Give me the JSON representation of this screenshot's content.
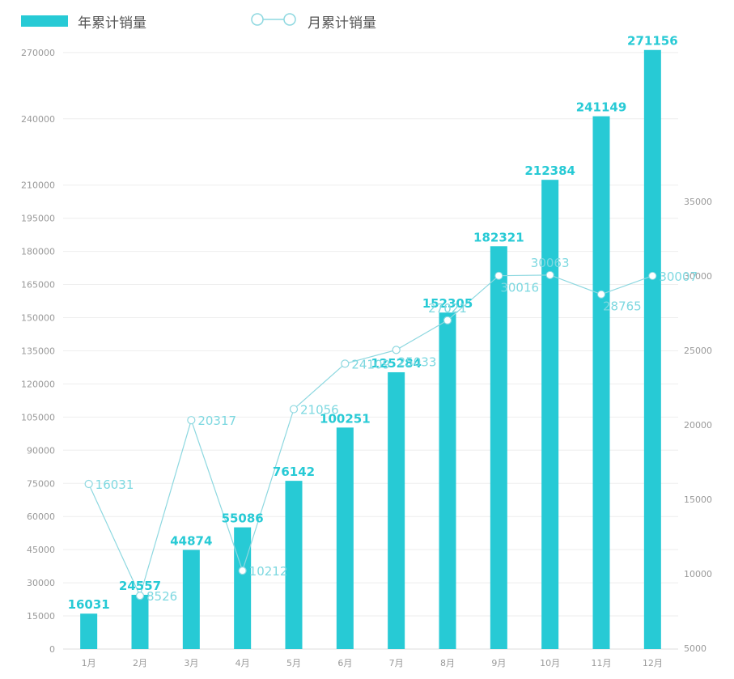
{
  "legend": {
    "bar_series": "年累计销量",
    "line_series": "月累计销量"
  },
  "colors": {
    "bar": "#27cad5",
    "line": "#8ed8e0",
    "line_label": "#7dd8e0",
    "grid": "#eeeeee",
    "axis_text": "#999999"
  },
  "chart_data": {
    "type": "bar",
    "categories": [
      "1月",
      "2月",
      "3月",
      "4月",
      "5月",
      "6月",
      "7月",
      "8月",
      "9月",
      "10月",
      "11月",
      "12月"
    ],
    "series": [
      {
        "name": "年累计销量",
        "type": "bar",
        "axis": "left",
        "values": [
          16031,
          24557,
          44874,
          55086,
          76142,
          100251,
          125284,
          152305,
          182321,
          212384,
          241149,
          271156
        ]
      },
      {
        "name": "月累计销量",
        "type": "line",
        "axis": "right",
        "values": [
          16031,
          8526,
          20317,
          10212,
          21056,
          24109,
          25033,
          27021,
          30016,
          30063,
          28765,
          30007
        ],
        "label_positions": [
          "right",
          "right",
          "right",
          "right",
          "right",
          "right",
          "bottom",
          "top",
          "bottom",
          "top",
          "bottom",
          "right"
        ],
        "filled_points_from_index": 8
      }
    ],
    "y_left": {
      "ticks": [
        0,
        15000,
        30000,
        45000,
        60000,
        75000,
        90000,
        105000,
        120000,
        135000,
        150000,
        165000,
        180000,
        195000,
        210000,
        240000,
        270000
      ]
    },
    "y_right": {
      "ticks": [
        5000,
        10000,
        15000,
        20000,
        25000,
        30000,
        35000
      ]
    },
    "grid": true,
    "legend_position": "top-left"
  }
}
